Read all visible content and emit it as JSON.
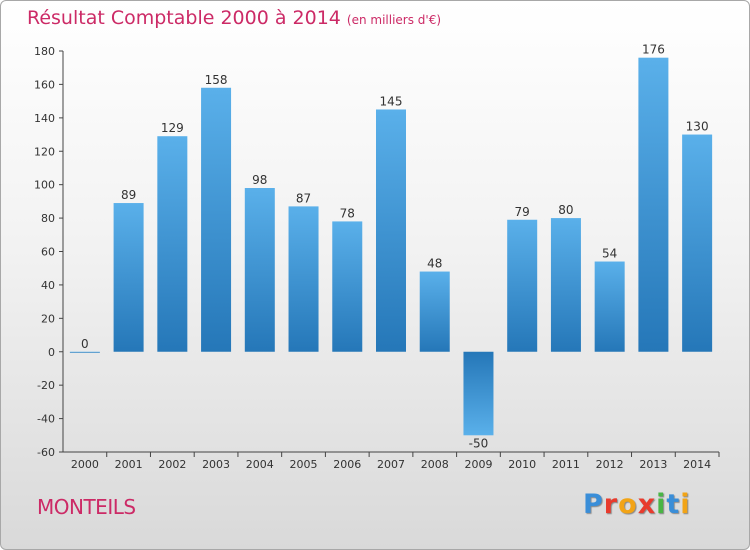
{
  "header": {
    "title": "Résultat Comptable 2000 à 2014",
    "unit": "(en milliers d'€)"
  },
  "footer": {
    "town": "MONTEILS"
  },
  "brand": {
    "logo_letters": [
      "P",
      "r",
      "o",
      "x",
      "i",
      "t",
      "i"
    ],
    "logo_colors": [
      "#3a8ed8",
      "#e83b2d",
      "#f2a416",
      "#e83b2d",
      "#49b545",
      "#3a8ed8",
      "#f2a416"
    ]
  },
  "chart_data": {
    "type": "bar",
    "categories": [
      "2000",
      "2001",
      "2002",
      "2003",
      "2004",
      "2005",
      "2006",
      "2007",
      "2008",
      "2009",
      "2010",
      "2011",
      "2012",
      "2013",
      "2014"
    ],
    "values": [
      0,
      89,
      129,
      158,
      98,
      87,
      78,
      145,
      48,
      -50,
      79,
      80,
      54,
      176,
      130
    ],
    "title": "Résultat Comptable 2000 à 2014",
    "xlabel": "",
    "ylabel": "",
    "ylim": [
      -60,
      180
    ],
    "yticks": [
      180,
      160,
      140,
      120,
      100,
      80,
      60,
      40,
      20,
      0,
      -20,
      -40,
      -60
    ],
    "grid": false,
    "bar_color_light": "#5ab0ea",
    "bar_color_dark": "#2577b8"
  }
}
